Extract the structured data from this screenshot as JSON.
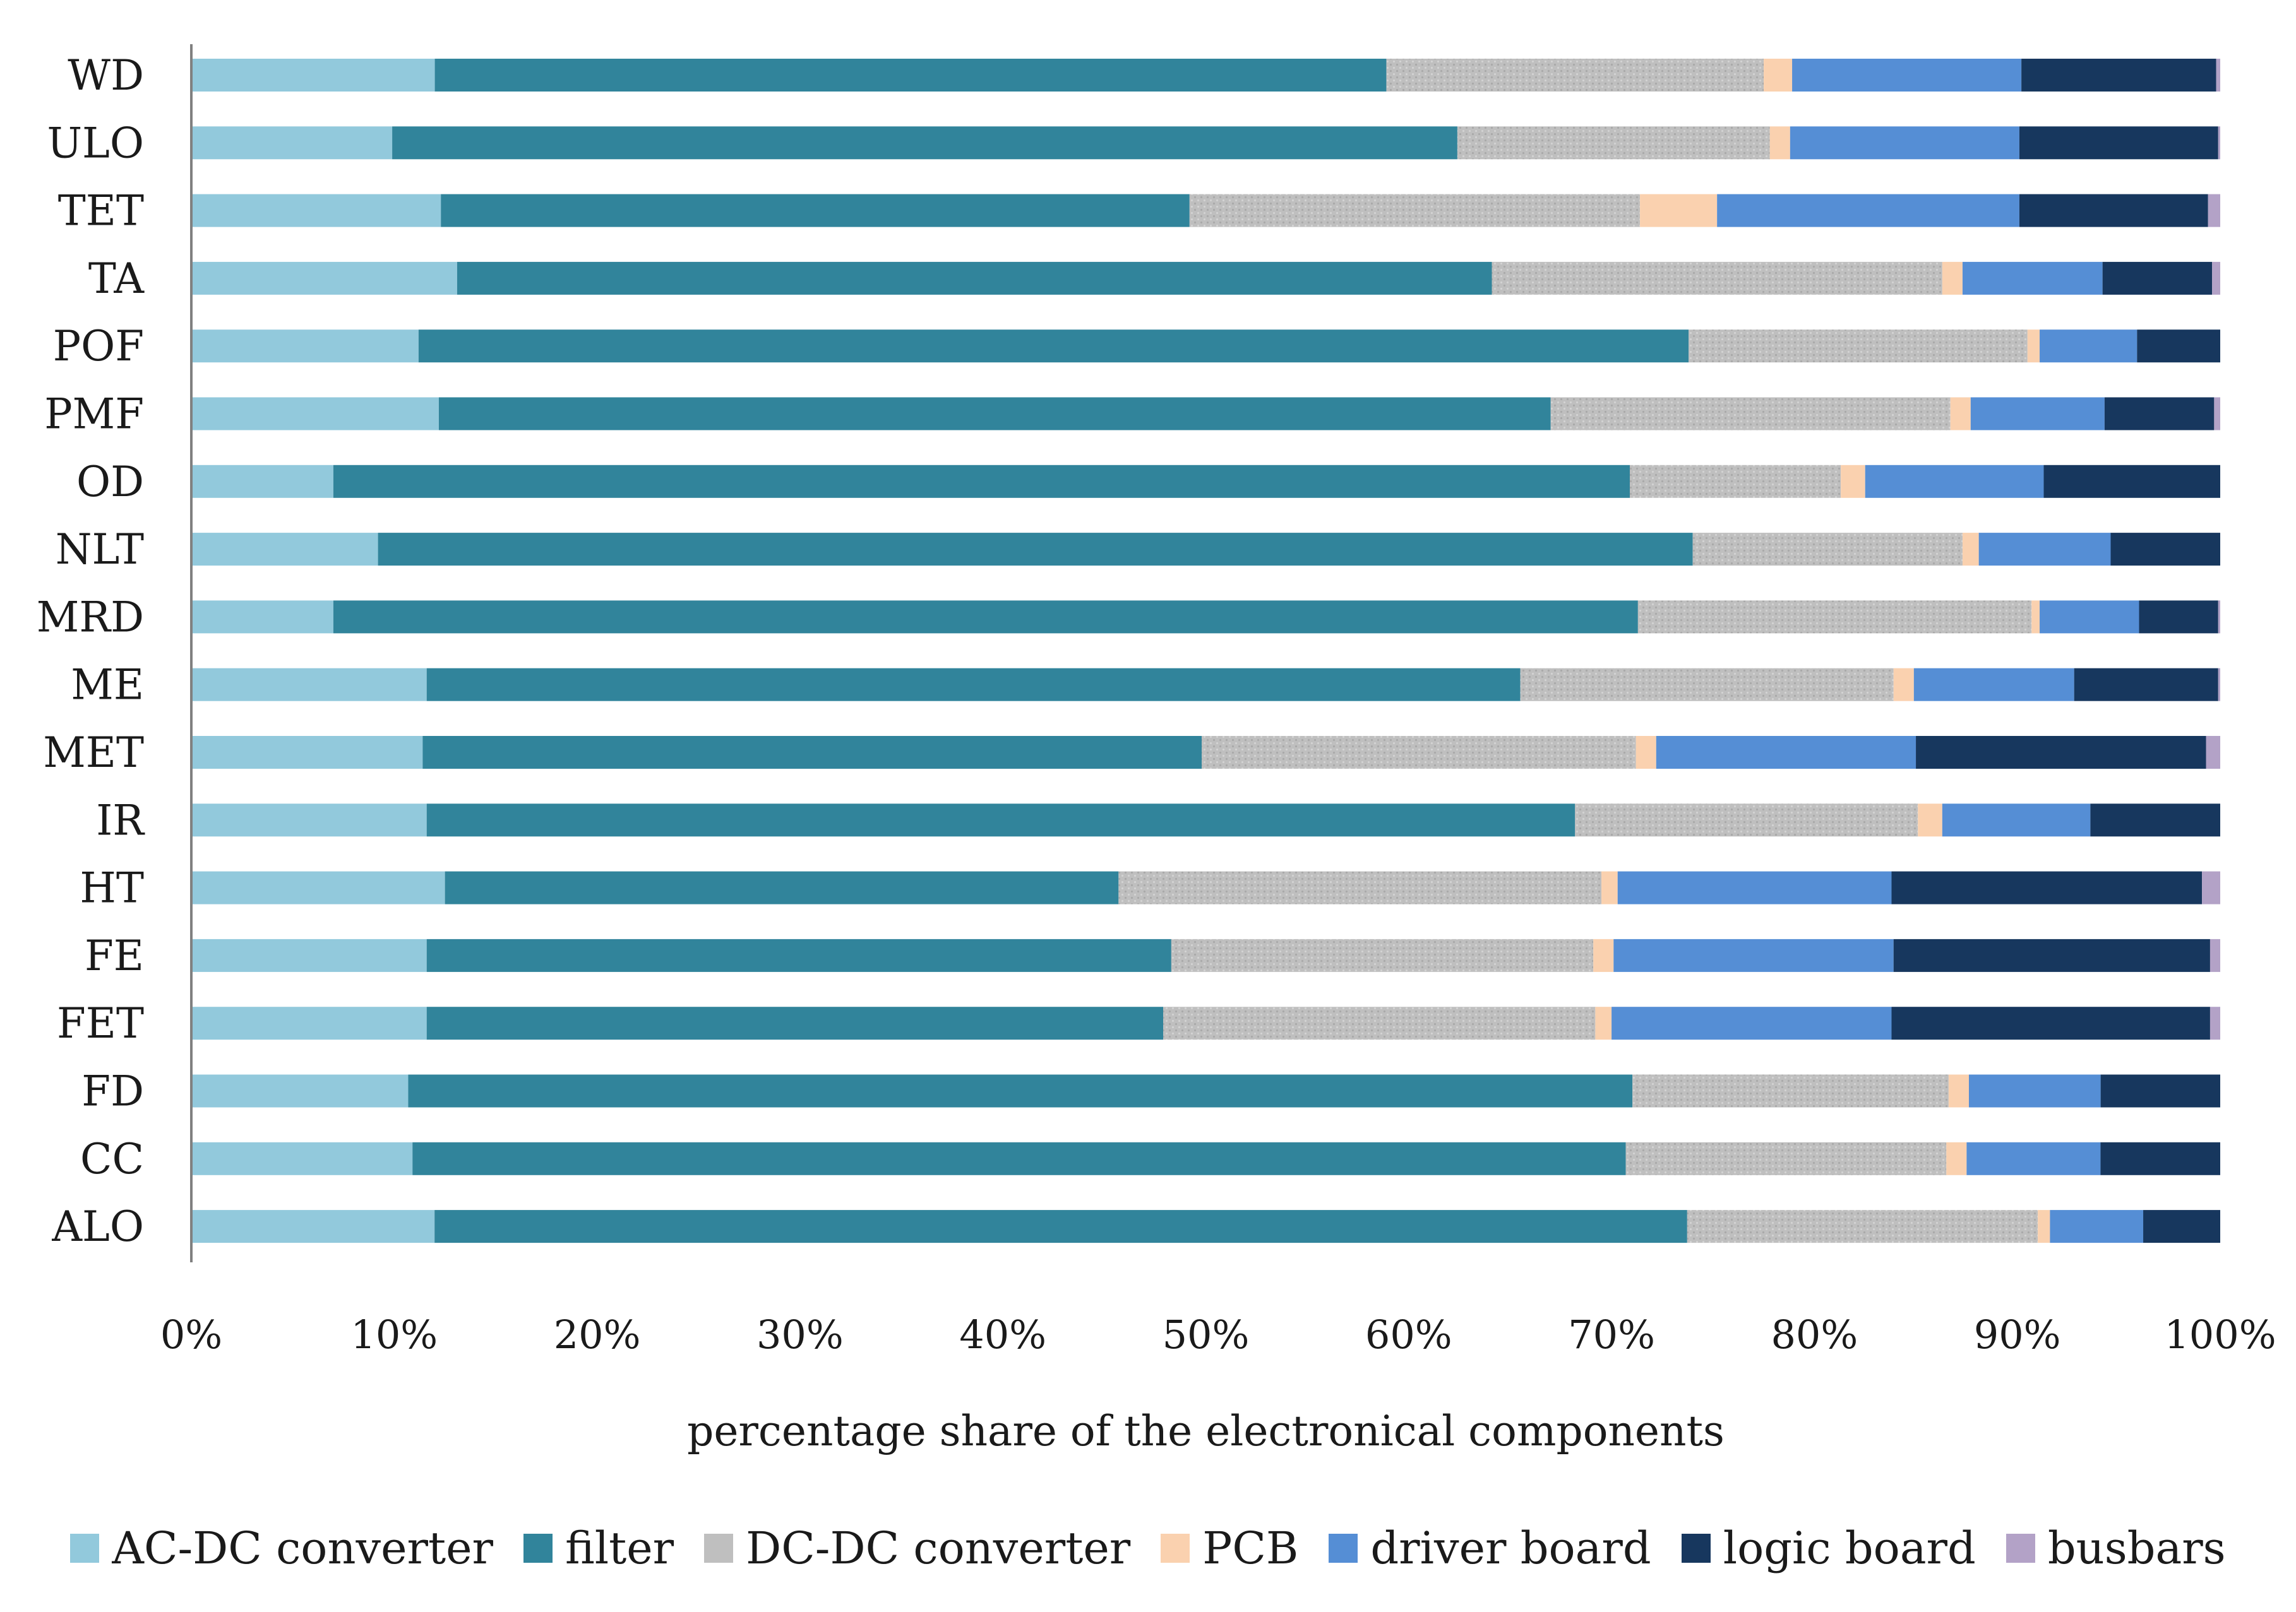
{
  "chart_data": {
    "type": "bar",
    "orientation": "horizontal",
    "stacked": "percent",
    "title": "",
    "xlabel": "percentage share of the electronical components",
    "ylabel": "",
    "xlim": [
      0,
      100
    ],
    "x_ticks": [
      "0%",
      "10%",
      "20%",
      "30%",
      "40%",
      "50%",
      "60%",
      "70%",
      "80%",
      "90%",
      "100%"
    ],
    "legend_position": "bottom",
    "categories": [
      "WD",
      "ULO",
      "TET",
      "TA",
      "POF",
      "PMF",
      "OD",
      "NLT",
      "MRD",
      "ME",
      "MET",
      "IR",
      "HT",
      "FE",
      "FET",
      "FD",
      "CC",
      "ALO"
    ],
    "series": [
      {
        "name": "AC-DC converter",
        "color": "#92C9DC",
        "values": [
          12.0,
          9.9,
          12.3,
          13.1,
          11.2,
          12.2,
          7.0,
          9.2,
          7.0,
          11.6,
          11.4,
          11.6,
          12.5,
          11.6,
          11.6,
          10.7,
          10.9,
          12.0
        ]
      },
      {
        "name": "filter",
        "color": "#31849B",
        "values": [
          46.9,
          52.5,
          36.9,
          51.0,
          62.6,
          54.8,
          63.9,
          64.8,
          64.3,
          53.9,
          38.4,
          56.6,
          33.2,
          36.7,
          36.3,
          60.4,
          59.8,
          61.8
        ]
      },
      {
        "name": "DC-DC converter",
        "color": "#BFBFBF",
        "values": [
          18.6,
          15.4,
          22.2,
          22.2,
          16.7,
          19.7,
          10.4,
          13.3,
          19.4,
          18.4,
          21.4,
          16.9,
          23.8,
          20.8,
          21.3,
          15.6,
          15.8,
          17.3
        ]
      },
      {
        "name": "PCB",
        "color": "#FAD1AF",
        "values": [
          1.4,
          1.0,
          3.8,
          1.0,
          0.6,
          1.0,
          1.2,
          0.8,
          0.4,
          1.0,
          1.0,
          1.2,
          0.8,
          1.0,
          0.8,
          1.0,
          1.0,
          0.6
        ]
      },
      {
        "name": "driver board",
        "color": "#558ED5",
        "values": [
          11.3,
          11.3,
          14.9,
          6.9,
          4.8,
          6.6,
          8.8,
          6.5,
          4.9,
          7.9,
          12.8,
          7.3,
          13.5,
          13.8,
          13.8,
          6.5,
          6.6,
          4.6
        ]
      },
      {
        "name": "logic board",
        "color": "#17375E",
        "values": [
          9.6,
          9.8,
          9.3,
          5.4,
          4.1,
          5.4,
          8.7,
          5.4,
          3.9,
          7.1,
          14.3,
          6.4,
          15.3,
          15.6,
          15.7,
          5.9,
          5.9,
          3.8
        ]
      },
      {
        "name": "busbars",
        "color": "#B3A2C7",
        "values": [
          0.2,
          0.1,
          0.6,
          0.4,
          0.0,
          0.3,
          0.0,
          0.0,
          0.1,
          0.1,
          0.7,
          0.0,
          0.9,
          0.5,
          0.5,
          0.0,
          0.0,
          0.0
        ]
      }
    ]
  }
}
